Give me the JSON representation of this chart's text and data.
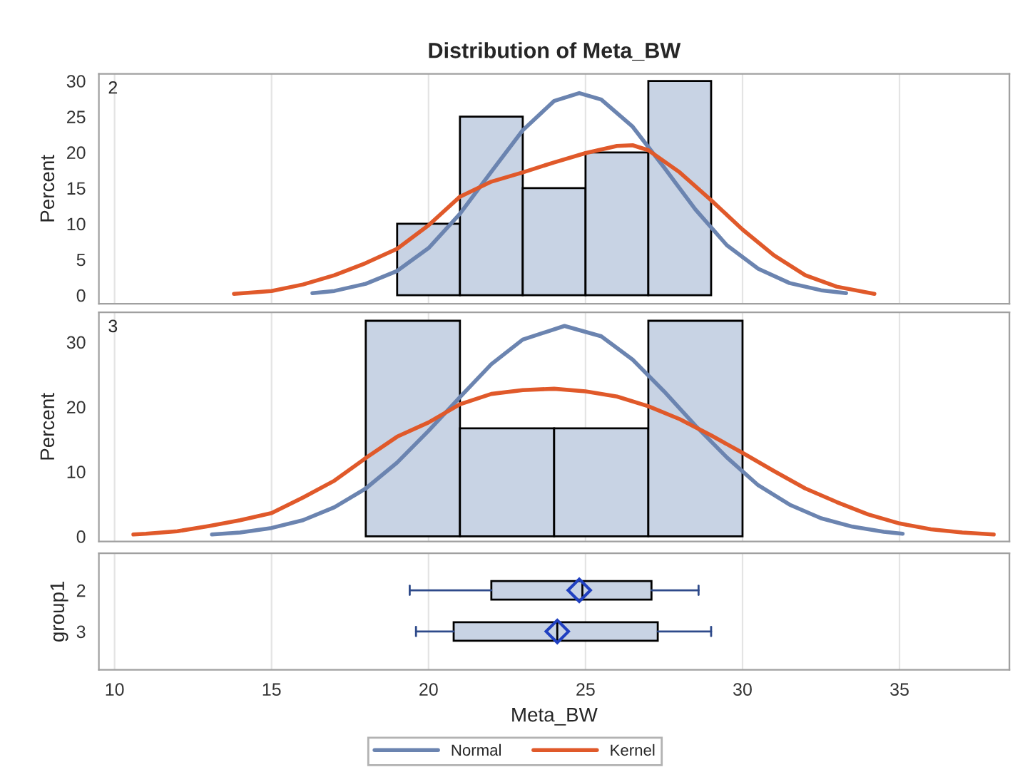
{
  "chart_data": [
    {
      "type": "histogram",
      "title": "Distribution of Meta_BW",
      "ylabel": "Percent",
      "annotations": [
        "2"
      ],
      "bins": [
        19,
        21,
        23,
        25,
        27,
        29
      ],
      "values": [
        10,
        25,
        15,
        20,
        30
      ],
      "color": "#c8d3e4",
      "xlim": [
        9.5,
        38.5
      ],
      "ylim": [
        -1.2,
        31
      ],
      "yticks": [
        0,
        5,
        10,
        15,
        20,
        25,
        30
      ],
      "tick_labels": "y",
      "grid": "x",
      "legend": "bottom",
      "series": [
        {
          "type": "line",
          "name": "Normal",
          "color": "#6b84b0",
          "x": [
            16.3,
            17,
            18,
            19,
            20,
            21,
            22,
            23,
            24,
            24.8,
            25.5,
            26.5,
            27.5,
            28.5,
            29.5,
            30.5,
            31.5,
            32.5,
            33.3
          ],
          "values": [
            0.3,
            0.6,
            1.6,
            3.4,
            6.6,
            11.4,
            17.3,
            23.1,
            27.2,
            28.3,
            27.4,
            23.6,
            17.9,
            12.0,
            7.0,
            3.7,
            1.7,
            0.7,
            0.3
          ]
        },
        {
          "type": "line",
          "name": "Kernel",
          "color": "#e0592a",
          "x": [
            13.8,
            15,
            16,
            17,
            18,
            19,
            20,
            21,
            22,
            23,
            24,
            25,
            26,
            26.5,
            27,
            28,
            29,
            30,
            31,
            32,
            33,
            34.2
          ],
          "values": [
            0.2,
            0.6,
            1.5,
            2.8,
            4.5,
            6.5,
            9.8,
            13.8,
            15.9,
            17.2,
            18.6,
            19.9,
            20.9,
            21.0,
            20.3,
            17.2,
            13.3,
            9.2,
            5.6,
            2.8,
            1.2,
            0.2
          ]
        }
      ]
    },
    {
      "type": "histogram",
      "ylabel": "Percent",
      "annotations": [
        "3"
      ],
      "bins": [
        18,
        21,
        24,
        27,
        30
      ],
      "values": [
        33.3,
        16.7,
        16.7,
        33.3
      ],
      "color": "#c8d3e4",
      "xlim": [
        9.5,
        38.5
      ],
      "ylim": [
        -0.8,
        34.6
      ],
      "yticks": [
        0,
        10,
        20,
        30
      ],
      "tick_labels": "y",
      "grid": "x",
      "series": [
        {
          "type": "line",
          "color": "#6b84b0",
          "x": [
            13.1,
            14,
            15,
            16,
            17,
            18,
            19,
            20,
            21,
            22,
            23,
            24.33,
            25.5,
            26.5,
            27.5,
            28.5,
            29.5,
            30.5,
            31.5,
            32.5,
            33.5,
            34.5,
            35.1
          ],
          "values": [
            0.3,
            0.6,
            1.3,
            2.5,
            4.5,
            7.4,
            11.4,
            16.3,
            21.5,
            26.6,
            30.4,
            32.5,
            30.9,
            27.3,
            22.4,
            17.1,
            12.2,
            7.9,
            4.9,
            2.8,
            1.5,
            0.7,
            0.4
          ]
        },
        {
          "type": "line",
          "color": "#e0592a",
          "x": [
            10.6,
            11,
            12,
            13,
            14,
            15,
            16,
            17,
            18,
            19,
            20,
            21,
            22,
            23,
            24,
            25,
            26,
            27,
            28,
            29,
            30,
            31,
            32,
            33,
            34,
            35,
            36,
            37,
            38
          ],
          "values": [
            0.3,
            0.4,
            0.8,
            1.6,
            2.5,
            3.6,
            6.0,
            8.6,
            12.1,
            15.4,
            17.6,
            20.4,
            22.0,
            22.6,
            22.8,
            22.4,
            21.6,
            20.1,
            18.1,
            15.6,
            12.9,
            10.1,
            7.4,
            5.3,
            3.4,
            2.0,
            1.1,
            0.6,
            0.3
          ]
        }
      ]
    },
    {
      "type": "box",
      "orientation": "horizontal",
      "xlabel": "Meta_BW",
      "ylabel": "group1",
      "categories": [
        "2",
        "3"
      ],
      "color": "#c8d3e4",
      "xlim": [
        9.5,
        38.5
      ],
      "xticks": [
        10,
        15,
        20,
        25,
        30,
        35
      ],
      "grid": "x",
      "boxes": [
        {
          "low": 19.4,
          "q1": 22.0,
          "median": 24.9,
          "q3": 27.1,
          "high": 28.6,
          "mean": 24.8
        },
        {
          "low": 19.6,
          "q1": 20.8,
          "median": 24.1,
          "q3": 27.3,
          "high": 29.0,
          "mean": 24.1
        }
      ]
    }
  ]
}
